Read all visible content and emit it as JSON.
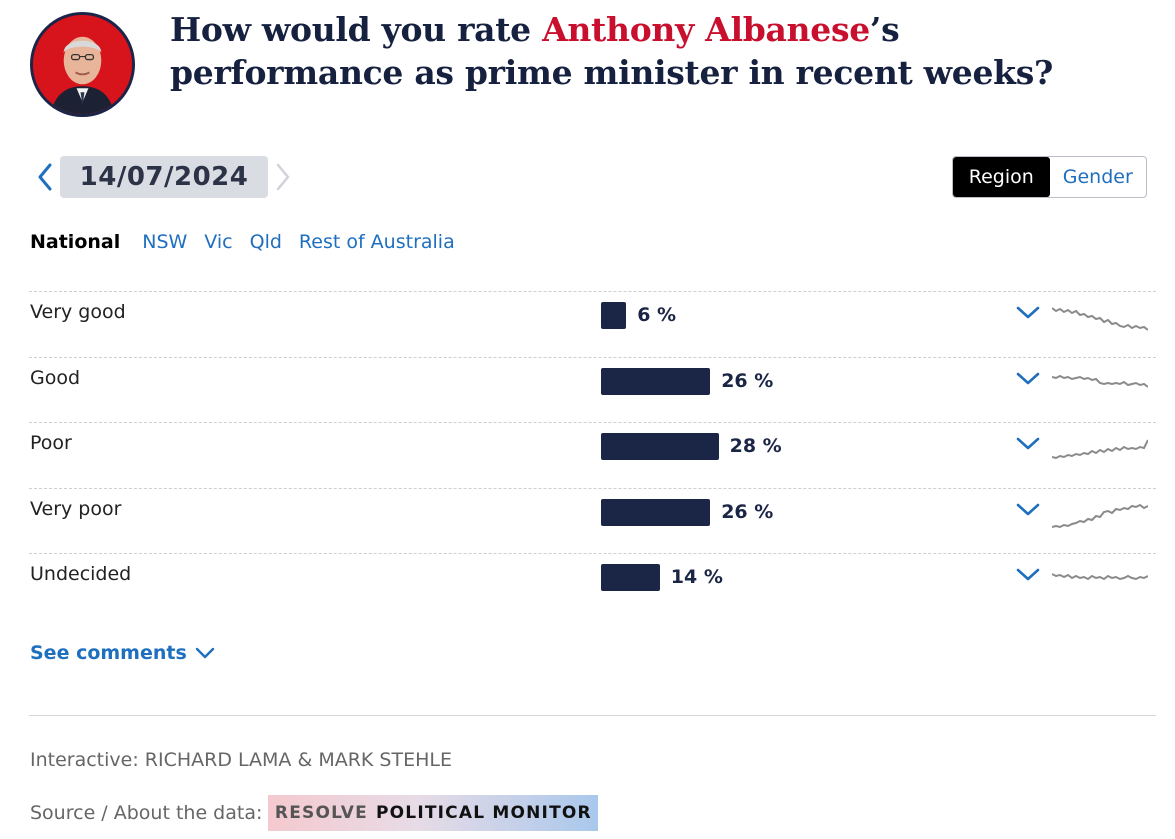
{
  "header": {
    "question_before": "How would you rate ",
    "question_name": "Anthony Albanese",
    "question_after": "’s performance as prime minister in recent weeks?"
  },
  "date_nav": {
    "date": "14/07/2024"
  },
  "breakdown_toggle": {
    "options": [
      "Region",
      "Gender"
    ],
    "selected": "Region"
  },
  "region_tabs": {
    "items": [
      "National",
      "NSW",
      "Vic",
      "Qld",
      "Rest of Australia"
    ],
    "selected": "National"
  },
  "results": {
    "rows": [
      {
        "label": "Very good",
        "value": 6,
        "pct_text": "6 %"
      },
      {
        "label": "Good",
        "value": 26,
        "pct_text": "26 %"
      },
      {
        "label": "Poor",
        "value": 28,
        "pct_text": "28 %"
      },
      {
        "label": "Very poor",
        "value": 26,
        "pct_text": "26 %"
      },
      {
        "label": "Undecided",
        "value": 14,
        "pct_text": "14 %"
      }
    ],
    "colors": {
      "bar": "#1b2545",
      "sparkline": "#8a8a8a",
      "link": "#1f6fbf",
      "highlight": "#c8102e"
    }
  },
  "comments": {
    "label": "See comments"
  },
  "footer": {
    "credit": "Interactive: RICHARD LAMA & MARK STEHLE",
    "source_label": "Source / About the data:",
    "source_brand_1": "RESOLVE",
    "source_brand_2": "POLITICAL MONITOR"
  }
}
